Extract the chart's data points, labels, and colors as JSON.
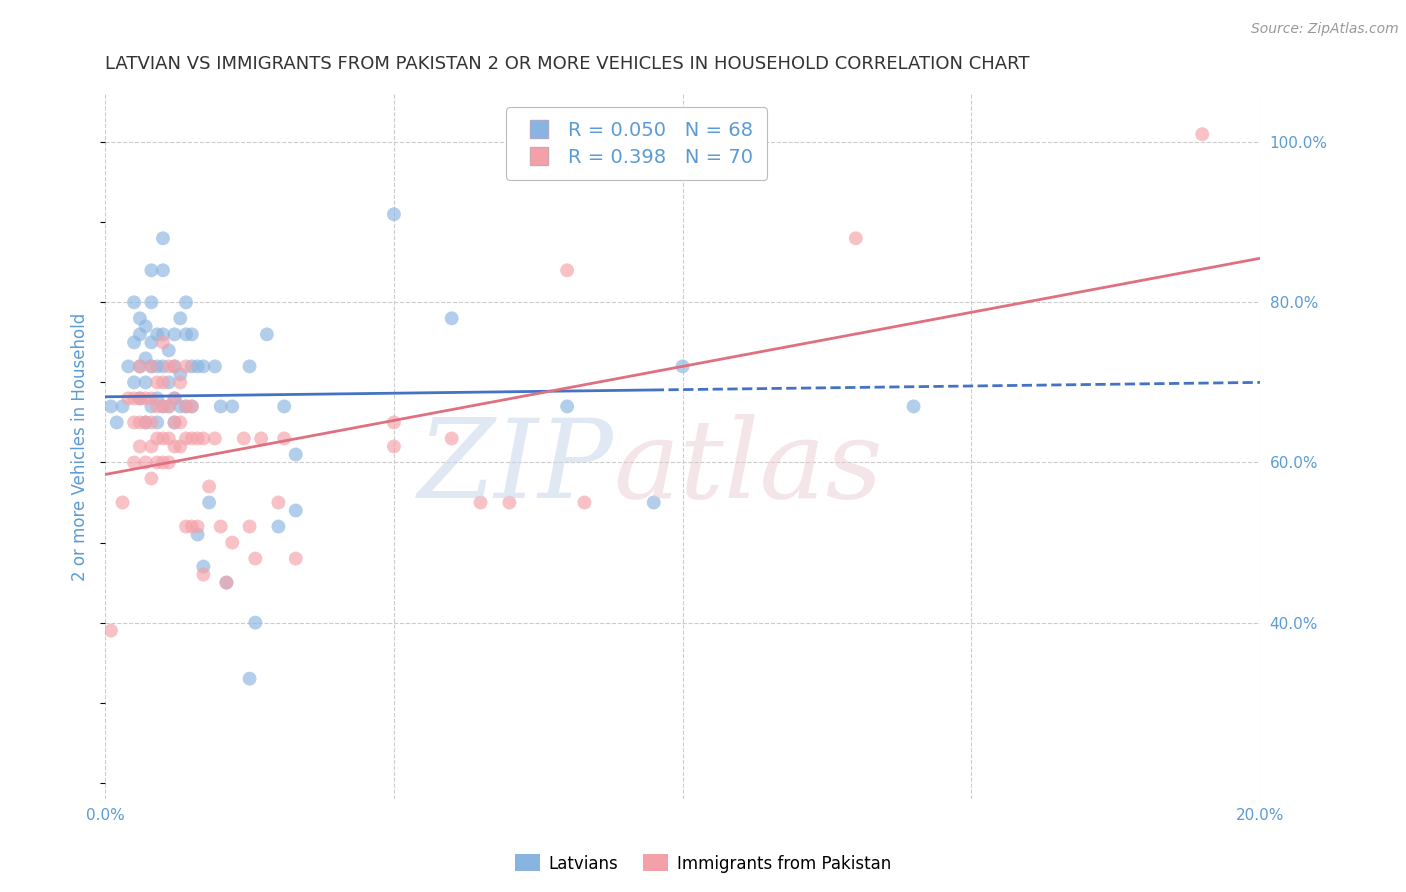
{
  "title": "LATVIAN VS IMMIGRANTS FROM PAKISTAN 2 OR MORE VEHICLES IN HOUSEHOLD CORRELATION CHART",
  "source": "Source: ZipAtlas.com",
  "ylabel": "2 or more Vehicles in Household",
  "xlim": [
    0.0,
    0.2
  ],
  "ylim": [
    0.18,
    1.06
  ],
  "xticks": [
    0.0,
    0.05,
    0.1,
    0.15,
    0.2
  ],
  "xtick_labels": [
    "0.0%",
    "",
    "",
    "",
    "20.0%"
  ],
  "ytick_positions": [
    1.0,
    0.8,
    0.6,
    0.4
  ],
  "ytick_labels": [
    "100.0%",
    "80.0%",
    "60.0%",
    "40.0%"
  ],
  "blue_R": 0.05,
  "blue_N": 68,
  "pink_R": 0.398,
  "pink_N": 70,
  "blue_color": "#8AB4E0",
  "pink_color": "#F4A0A8",
  "blue_line_color": "#4472C4",
  "pink_line_color": "#E07080",
  "blue_label": "Latvians",
  "pink_label": "Immigrants from Pakistan",
  "watermark": "ZIPatlas",
  "watermark_blue": "#C8D8EA",
  "watermark_pink": "#E8C8CC",
  "blue_scatter": [
    [
      0.001,
      0.67
    ],
    [
      0.002,
      0.65
    ],
    [
      0.003,
      0.67
    ],
    [
      0.004,
      0.72
    ],
    [
      0.005,
      0.7
    ],
    [
      0.005,
      0.75
    ],
    [
      0.005,
      0.8
    ],
    [
      0.006,
      0.68
    ],
    [
      0.006,
      0.72
    ],
    [
      0.006,
      0.76
    ],
    [
      0.006,
      0.78
    ],
    [
      0.007,
      0.65
    ],
    [
      0.007,
      0.7
    ],
    [
      0.007,
      0.73
    ],
    [
      0.007,
      0.77
    ],
    [
      0.008,
      0.67
    ],
    [
      0.008,
      0.72
    ],
    [
      0.008,
      0.75
    ],
    [
      0.008,
      0.8
    ],
    [
      0.008,
      0.84
    ],
    [
      0.009,
      0.65
    ],
    [
      0.009,
      0.68
    ],
    [
      0.009,
      0.72
    ],
    [
      0.009,
      0.76
    ],
    [
      0.01,
      0.67
    ],
    [
      0.01,
      0.72
    ],
    [
      0.01,
      0.76
    ],
    [
      0.01,
      0.84
    ],
    [
      0.01,
      0.88
    ],
    [
      0.011,
      0.67
    ],
    [
      0.011,
      0.7
    ],
    [
      0.011,
      0.74
    ],
    [
      0.012,
      0.65
    ],
    [
      0.012,
      0.68
    ],
    [
      0.012,
      0.72
    ],
    [
      0.012,
      0.76
    ],
    [
      0.013,
      0.67
    ],
    [
      0.013,
      0.71
    ],
    [
      0.013,
      0.78
    ],
    [
      0.014,
      0.67
    ],
    [
      0.014,
      0.76
    ],
    [
      0.014,
      0.8
    ],
    [
      0.015,
      0.67
    ],
    [
      0.015,
      0.72
    ],
    [
      0.015,
      0.76
    ],
    [
      0.016,
      0.51
    ],
    [
      0.016,
      0.72
    ],
    [
      0.017,
      0.47
    ],
    [
      0.017,
      0.72
    ],
    [
      0.018,
      0.55
    ],
    [
      0.019,
      0.72
    ],
    [
      0.02,
      0.67
    ],
    [
      0.021,
      0.45
    ],
    [
      0.022,
      0.67
    ],
    [
      0.025,
      0.33
    ],
    [
      0.025,
      0.72
    ],
    [
      0.026,
      0.4
    ],
    [
      0.028,
      0.76
    ],
    [
      0.03,
      0.52
    ],
    [
      0.031,
      0.67
    ],
    [
      0.033,
      0.54
    ],
    [
      0.033,
      0.61
    ],
    [
      0.05,
      0.91
    ],
    [
      0.06,
      0.78
    ],
    [
      0.08,
      0.67
    ],
    [
      0.095,
      0.55
    ],
    [
      0.1,
      0.72
    ],
    [
      0.14,
      0.67
    ]
  ],
  "pink_scatter": [
    [
      0.001,
      0.39
    ],
    [
      0.003,
      0.55
    ],
    [
      0.004,
      0.68
    ],
    [
      0.005,
      0.6
    ],
    [
      0.005,
      0.65
    ],
    [
      0.005,
      0.68
    ],
    [
      0.006,
      0.62
    ],
    [
      0.006,
      0.65
    ],
    [
      0.006,
      0.68
    ],
    [
      0.006,
      0.72
    ],
    [
      0.007,
      0.6
    ],
    [
      0.007,
      0.65
    ],
    [
      0.007,
      0.68
    ],
    [
      0.008,
      0.58
    ],
    [
      0.008,
      0.62
    ],
    [
      0.008,
      0.65
    ],
    [
      0.008,
      0.68
    ],
    [
      0.008,
      0.72
    ],
    [
      0.009,
      0.6
    ],
    [
      0.009,
      0.63
    ],
    [
      0.009,
      0.67
    ],
    [
      0.009,
      0.7
    ],
    [
      0.01,
      0.6
    ],
    [
      0.01,
      0.63
    ],
    [
      0.01,
      0.67
    ],
    [
      0.01,
      0.7
    ],
    [
      0.01,
      0.75
    ],
    [
      0.011,
      0.6
    ],
    [
      0.011,
      0.63
    ],
    [
      0.011,
      0.67
    ],
    [
      0.011,
      0.72
    ],
    [
      0.012,
      0.62
    ],
    [
      0.012,
      0.65
    ],
    [
      0.012,
      0.68
    ],
    [
      0.012,
      0.72
    ],
    [
      0.013,
      0.62
    ],
    [
      0.013,
      0.65
    ],
    [
      0.013,
      0.7
    ],
    [
      0.014,
      0.52
    ],
    [
      0.014,
      0.63
    ],
    [
      0.014,
      0.67
    ],
    [
      0.014,
      0.72
    ],
    [
      0.015,
      0.52
    ],
    [
      0.015,
      0.63
    ],
    [
      0.015,
      0.67
    ],
    [
      0.016,
      0.52
    ],
    [
      0.016,
      0.63
    ],
    [
      0.017,
      0.46
    ],
    [
      0.017,
      0.63
    ],
    [
      0.018,
      0.57
    ],
    [
      0.019,
      0.63
    ],
    [
      0.02,
      0.52
    ],
    [
      0.021,
      0.45
    ],
    [
      0.022,
      0.5
    ],
    [
      0.024,
      0.63
    ],
    [
      0.025,
      0.52
    ],
    [
      0.026,
      0.48
    ],
    [
      0.027,
      0.63
    ],
    [
      0.03,
      0.55
    ],
    [
      0.031,
      0.63
    ],
    [
      0.033,
      0.48
    ],
    [
      0.05,
      0.62
    ],
    [
      0.05,
      0.65
    ],
    [
      0.06,
      0.63
    ],
    [
      0.065,
      0.55
    ],
    [
      0.07,
      0.55
    ],
    [
      0.08,
      0.84
    ],
    [
      0.083,
      0.55
    ],
    [
      0.13,
      0.88
    ],
    [
      0.19,
      1.01
    ]
  ],
  "blue_trend_x0": 0.0,
  "blue_trend_x_solid_end": 0.095,
  "blue_trend_x1": 0.2,
  "blue_trend_y0": 0.682,
  "blue_trend_y1": 0.7,
  "pink_trend_x0": 0.0,
  "pink_trend_x1": 0.2,
  "pink_trend_y0": 0.585,
  "pink_trend_y1": 0.855,
  "grid_color": "#CCCCCC",
  "background_color": "#FFFFFF",
  "title_color": "#333333",
  "tick_label_color": "#5B9BD5",
  "marker_size": 100,
  "legend_R_color": "#4472C4",
  "legend_N_color": "#FF0000"
}
